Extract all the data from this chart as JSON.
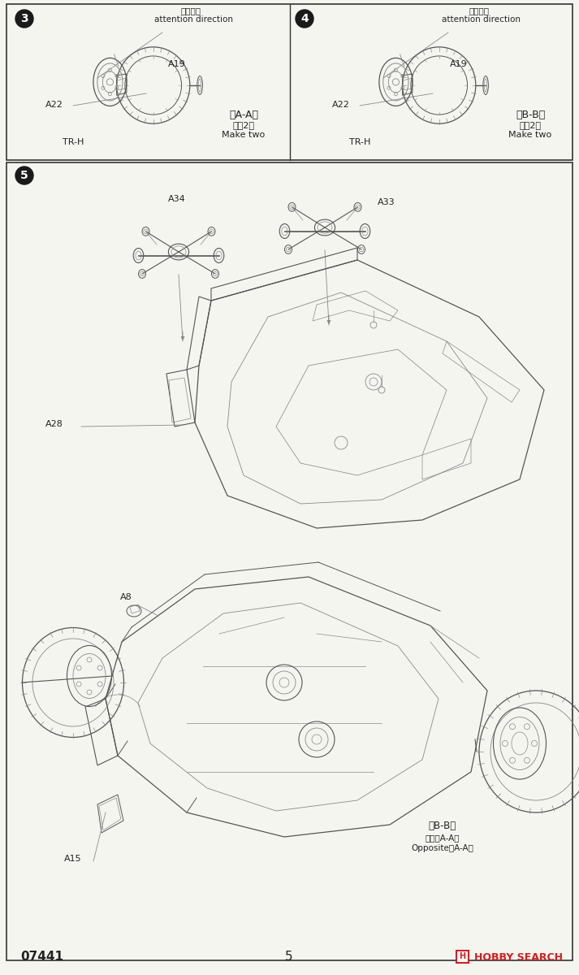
{
  "page_num": "5",
  "product_code": "07441",
  "brand": "HOBBY SEARCH",
  "brand_icon": "H",
  "background_color": "#f5f5f0",
  "border_color": "#333333",
  "text_color": "#222222",
  "gray_color": "#888888",
  "brand_color": "#cc2222",
  "step3": {
    "number": "3",
    "note_cn": "注意方向",
    "note_en": "attention direction",
    "section": "《A-A》",
    "section_cn": "制作2组",
    "section_en": "Make two",
    "label_a22": "A22",
    "label_a19": "A19",
    "label_trh": "TR-H"
  },
  "step4": {
    "number": "4",
    "note_cn": "注意方向",
    "note_en": "attention direction",
    "section": "《B-B》",
    "section_cn": "制作2组",
    "section_en": "Make two",
    "label_a22": "A22",
    "label_a19": "A19",
    "label_trh": "TR-H"
  },
  "step5": {
    "number": "5",
    "label_a34": "A34",
    "label_a33": "A33",
    "label_a28": "A28",
    "label_a8": "A8",
    "label_a15": "A15",
    "note_bb": "《B-B》",
    "note_aa": "对侧《A-A》",
    "note_en": "Opposite《A-A》"
  }
}
